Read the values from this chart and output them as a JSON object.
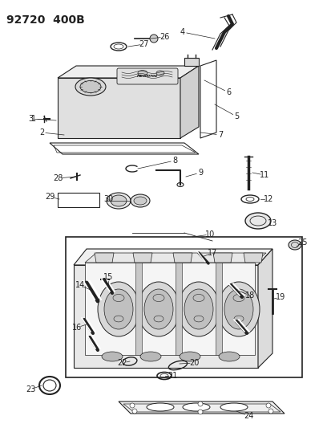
{
  "title": "92720  400B",
  "bg": "#ffffff",
  "lc": "#222222",
  "fig_w": 4.14,
  "fig_h": 5.33,
  "dpi": 100
}
